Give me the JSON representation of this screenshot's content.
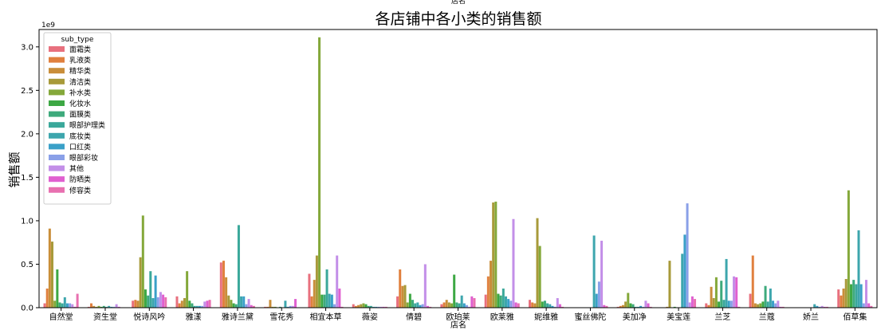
{
  "chart_data": {
    "type": "bar",
    "title": "各店铺中各小类的销售额",
    "top_label": "店名",
    "xlabel": "店名",
    "ylabel": "销售额",
    "y_multiplier": "1e9",
    "ylim": [
      0,
      3.2
    ],
    "yticks": [
      0.0,
      0.5,
      1.0,
      1.5,
      2.0,
      2.5,
      3.0
    ],
    "ytick_labels": [
      "0.0",
      "0.5",
      "1.0",
      "1.5",
      "2.0",
      "2.5",
      "3.0"
    ],
    "grid": false,
    "legend": {
      "title": "sub_type",
      "placement": "top-left"
    },
    "categories": [
      "自然堂",
      "资生堂",
      "悦诗风吟",
      "雅漾",
      "雅诗兰黛",
      "雪花秀",
      "相宜本草",
      "薇姿",
      "倩碧",
      "欧珀莱",
      "欧莱雅",
      "妮维雅",
      "蜜丝佛陀",
      "美加净",
      "美宝莲",
      "兰芝",
      "兰蔻",
      "娇兰",
      "佰草集"
    ],
    "series": [
      {
        "name": "面霜类",
        "color": "#e8707e",
        "values": [
          0.05,
          0.01,
          0.08,
          0.13,
          0.52,
          0.01,
          0.39,
          0.04,
          0.13,
          0.04,
          0.15,
          0.09,
          0.0,
          0.01,
          0.0,
          0.05,
          0.16,
          0.0,
          0.21
        ]
      },
      {
        "name": "乳液类",
        "color": "#e0803e",
        "values": [
          0.22,
          0.05,
          0.09,
          0.05,
          0.54,
          0.01,
          0.13,
          0.02,
          0.44,
          0.06,
          0.36,
          0.06,
          0.0,
          0.02,
          0.0,
          0.03,
          0.6,
          0.0,
          0.14
        ]
      },
      {
        "name": "精华类",
        "color": "#c98e3a",
        "values": [
          0.91,
          0.02,
          0.08,
          0.08,
          0.35,
          0.09,
          0.32,
          0.03,
          0.25,
          0.09,
          0.54,
          0.05,
          0.0,
          0.03,
          0.01,
          0.24,
          0.05,
          0.0,
          0.22
        ]
      },
      {
        "name": "清洁类",
        "color": "#a89a3a",
        "values": [
          0.76,
          0.01,
          0.58,
          0.11,
          0.14,
          0.01,
          0.6,
          0.04,
          0.26,
          0.06,
          1.21,
          1.03,
          0.0,
          0.07,
          0.54,
          0.11,
          0.04,
          0.0,
          0.33
        ]
      },
      {
        "name": "补水类",
        "color": "#84a83a",
        "values": [
          0.08,
          0.02,
          1.06,
          0.42,
          0.09,
          0.01,
          3.11,
          0.05,
          0.06,
          0.05,
          1.22,
          0.71,
          0.0,
          0.17,
          0.0,
          0.35,
          0.05,
          0.0,
          1.35
        ]
      },
      {
        "name": "化妆水",
        "color": "#3da844",
        "values": [
          0.44,
          0.01,
          0.21,
          0.08,
          0.05,
          0.0,
          0.15,
          0.04,
          0.16,
          0.38,
          0.16,
          0.07,
          0.0,
          0.05,
          0.01,
          0.07,
          0.07,
          0.0,
          0.27
        ]
      },
      {
        "name": "面膜类",
        "color": "#3eaa7c",
        "values": [
          0.06,
          0.02,
          0.14,
          0.05,
          0.04,
          0.01,
          0.15,
          0.02,
          0.09,
          0.06,
          0.14,
          0.08,
          0.0,
          0.04,
          0.0,
          0.31,
          0.25,
          0.0,
          0.32
        ]
      },
      {
        "name": "眼部护理类",
        "color": "#3aa89a",
        "values": [
          0.05,
          0.01,
          0.42,
          0.02,
          0.95,
          0.0,
          0.44,
          0.02,
          0.05,
          0.05,
          0.22,
          0.05,
          0.0,
          0.01,
          0.0,
          0.09,
          0.07,
          0.0,
          0.27
        ]
      },
      {
        "name": "底妆类",
        "color": "#3da6ad",
        "values": [
          0.12,
          0.02,
          0.11,
          0.02,
          0.13,
          0.08,
          0.16,
          0.01,
          0.06,
          0.14,
          0.13,
          0.04,
          0.83,
          0.01,
          0.62,
          0.56,
          0.22,
          0.04,
          0.89
        ]
      },
      {
        "name": "口红类",
        "color": "#3aa0c8",
        "values": [
          0.05,
          0.01,
          0.37,
          0.02,
          0.13,
          0.01,
          0.15,
          0.01,
          0.03,
          0.05,
          0.1,
          0.02,
          0.16,
          0.02,
          0.84,
          0.08,
          0.08,
          0.02,
          0.27
        ]
      },
      {
        "name": "眼部彩妆",
        "color": "#8aa0e8",
        "values": [
          0.05,
          0.01,
          0.12,
          0.02,
          0.04,
          0.02,
          0.04,
          0.01,
          0.04,
          0.03,
          0.08,
          0.01,
          0.3,
          0.01,
          1.2,
          0.08,
          0.05,
          0.01,
          0.05
        ]
      },
      {
        "name": "其他",
        "color": "#c38fe8",
        "values": [
          0.04,
          0.04,
          0.18,
          0.07,
          0.1,
          0.02,
          0.6,
          0.01,
          0.5,
          0.01,
          1.02,
          0.11,
          0.77,
          0.08,
          0.06,
          0.36,
          0.08,
          0.02,
          0.32
        ]
      },
      {
        "name": "防晒类",
        "color": "#e060d0",
        "values": [
          0.01,
          0.01,
          0.15,
          0.08,
          0.03,
          0.1,
          0.22,
          0.01,
          0.02,
          0.13,
          0.06,
          0.04,
          0.03,
          0.05,
          0.13,
          0.35,
          0.01,
          0.01,
          0.05
        ]
      },
      {
        "name": "修容类",
        "color": "#e870b0",
        "values": [
          0.16,
          0.0,
          0.12,
          0.09,
          0.02,
          0.0,
          0.01,
          0.01,
          0.01,
          0.11,
          0.05,
          0.01,
          0.02,
          0.01,
          0.1,
          0.01,
          0.01,
          0.01,
          0.02
        ]
      }
    ]
  }
}
